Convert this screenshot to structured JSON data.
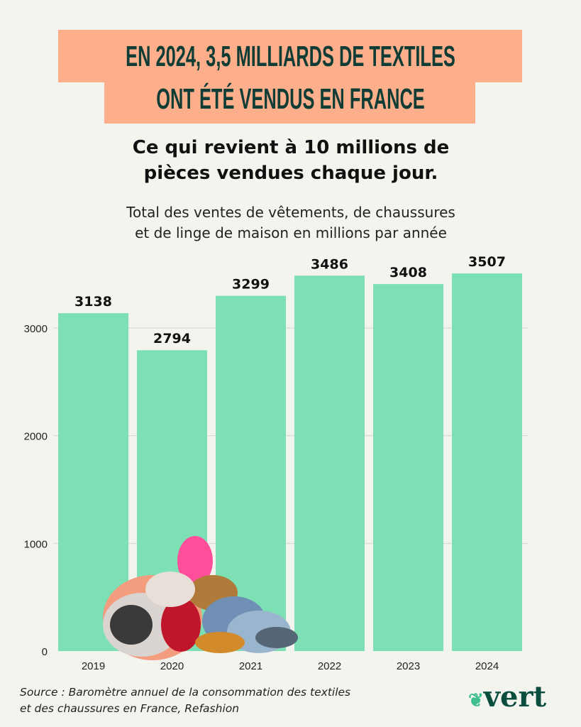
{
  "headline": [
    "EN 2024, 3,5 MILLIARDS DE TEXTILES",
    "ONT ÉTÉ VENDUS EN FRANCE"
  ],
  "subtitle": [
    "Ce qui revient à 10 millions de",
    "pièces vendues chaque jour."
  ],
  "description": [
    "Total des ventes de vêtements, de chaussures",
    "et de linge de maison en millions par année"
  ],
  "source": [
    "Source : Baromètre annuel de la consommation des textiles",
    "et des chaussures en France, Refashion"
  ],
  "logo": "vert",
  "colors": {
    "bar": "#7de0b4",
    "banner": "#fdae8a",
    "title": "#0f3d36",
    "grid": "#d6d6d0"
  },
  "chart_data": {
    "type": "bar",
    "categories": [
      "2019",
      "2020",
      "2021",
      "2022",
      "2023",
      "2024"
    ],
    "values": [
      3138,
      2794,
      3299,
      3486,
      3408,
      3507
    ],
    "yticks": [
      0,
      1000,
      2000,
      3000
    ],
    "ylim": [
      0,
      3600
    ],
    "grid": true,
    "title": "Total des ventes de vêtements, de chaussures et de linge de maison en millions par année",
    "xlabel": "",
    "ylabel": ""
  }
}
